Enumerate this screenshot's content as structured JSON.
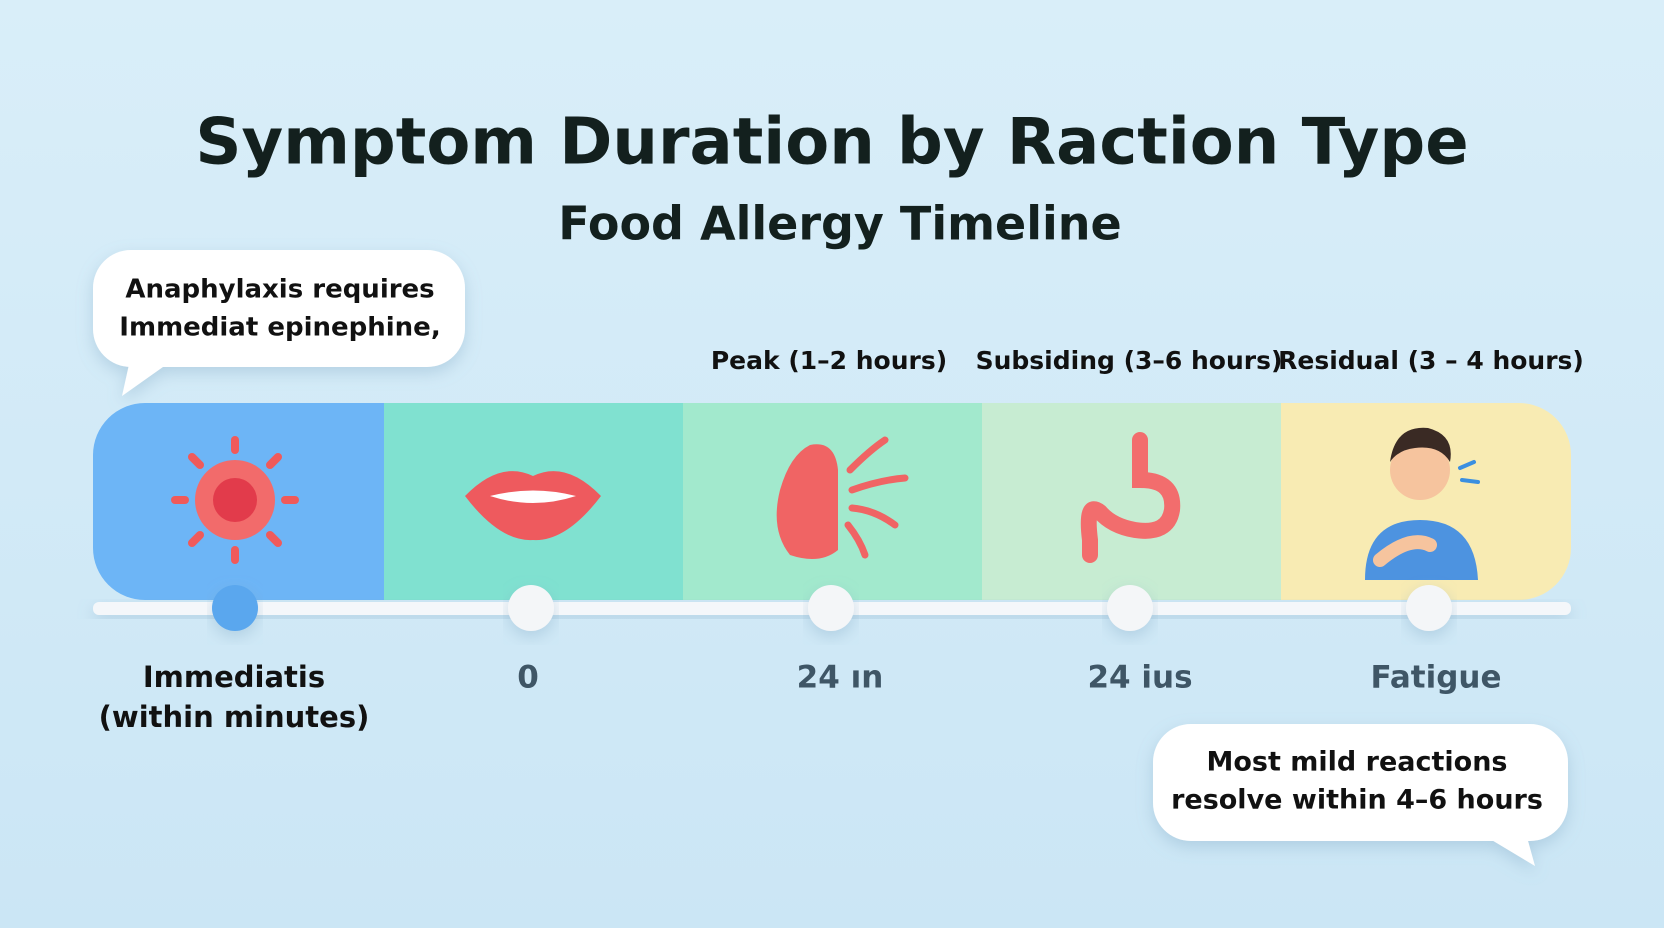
{
  "title": "Symptom Duration by Raction Type",
  "subtitle": "Food Allergy Timeline",
  "callouts": [
    {
      "lines": [
        "Anaphylaxis requires",
        "Immediat epinephine,"
      ]
    },
    {
      "lines": [
        "Most mild reactions",
        "resolve within 4–6 hours"
      ]
    }
  ],
  "stages": [
    {
      "label": "Immediatis",
      "sublabel": "(within minutes)"
    },
    {
      "label": "0"
    },
    {
      "header": "Peak (1–2 hours)",
      "label": "24 ın"
    },
    {
      "header": "Subsiding (3–6 hours)",
      "label": "24 ius"
    },
    {
      "header": "Residual (3 – 4 hours)",
      "label": "Fatigue"
    }
  ]
}
